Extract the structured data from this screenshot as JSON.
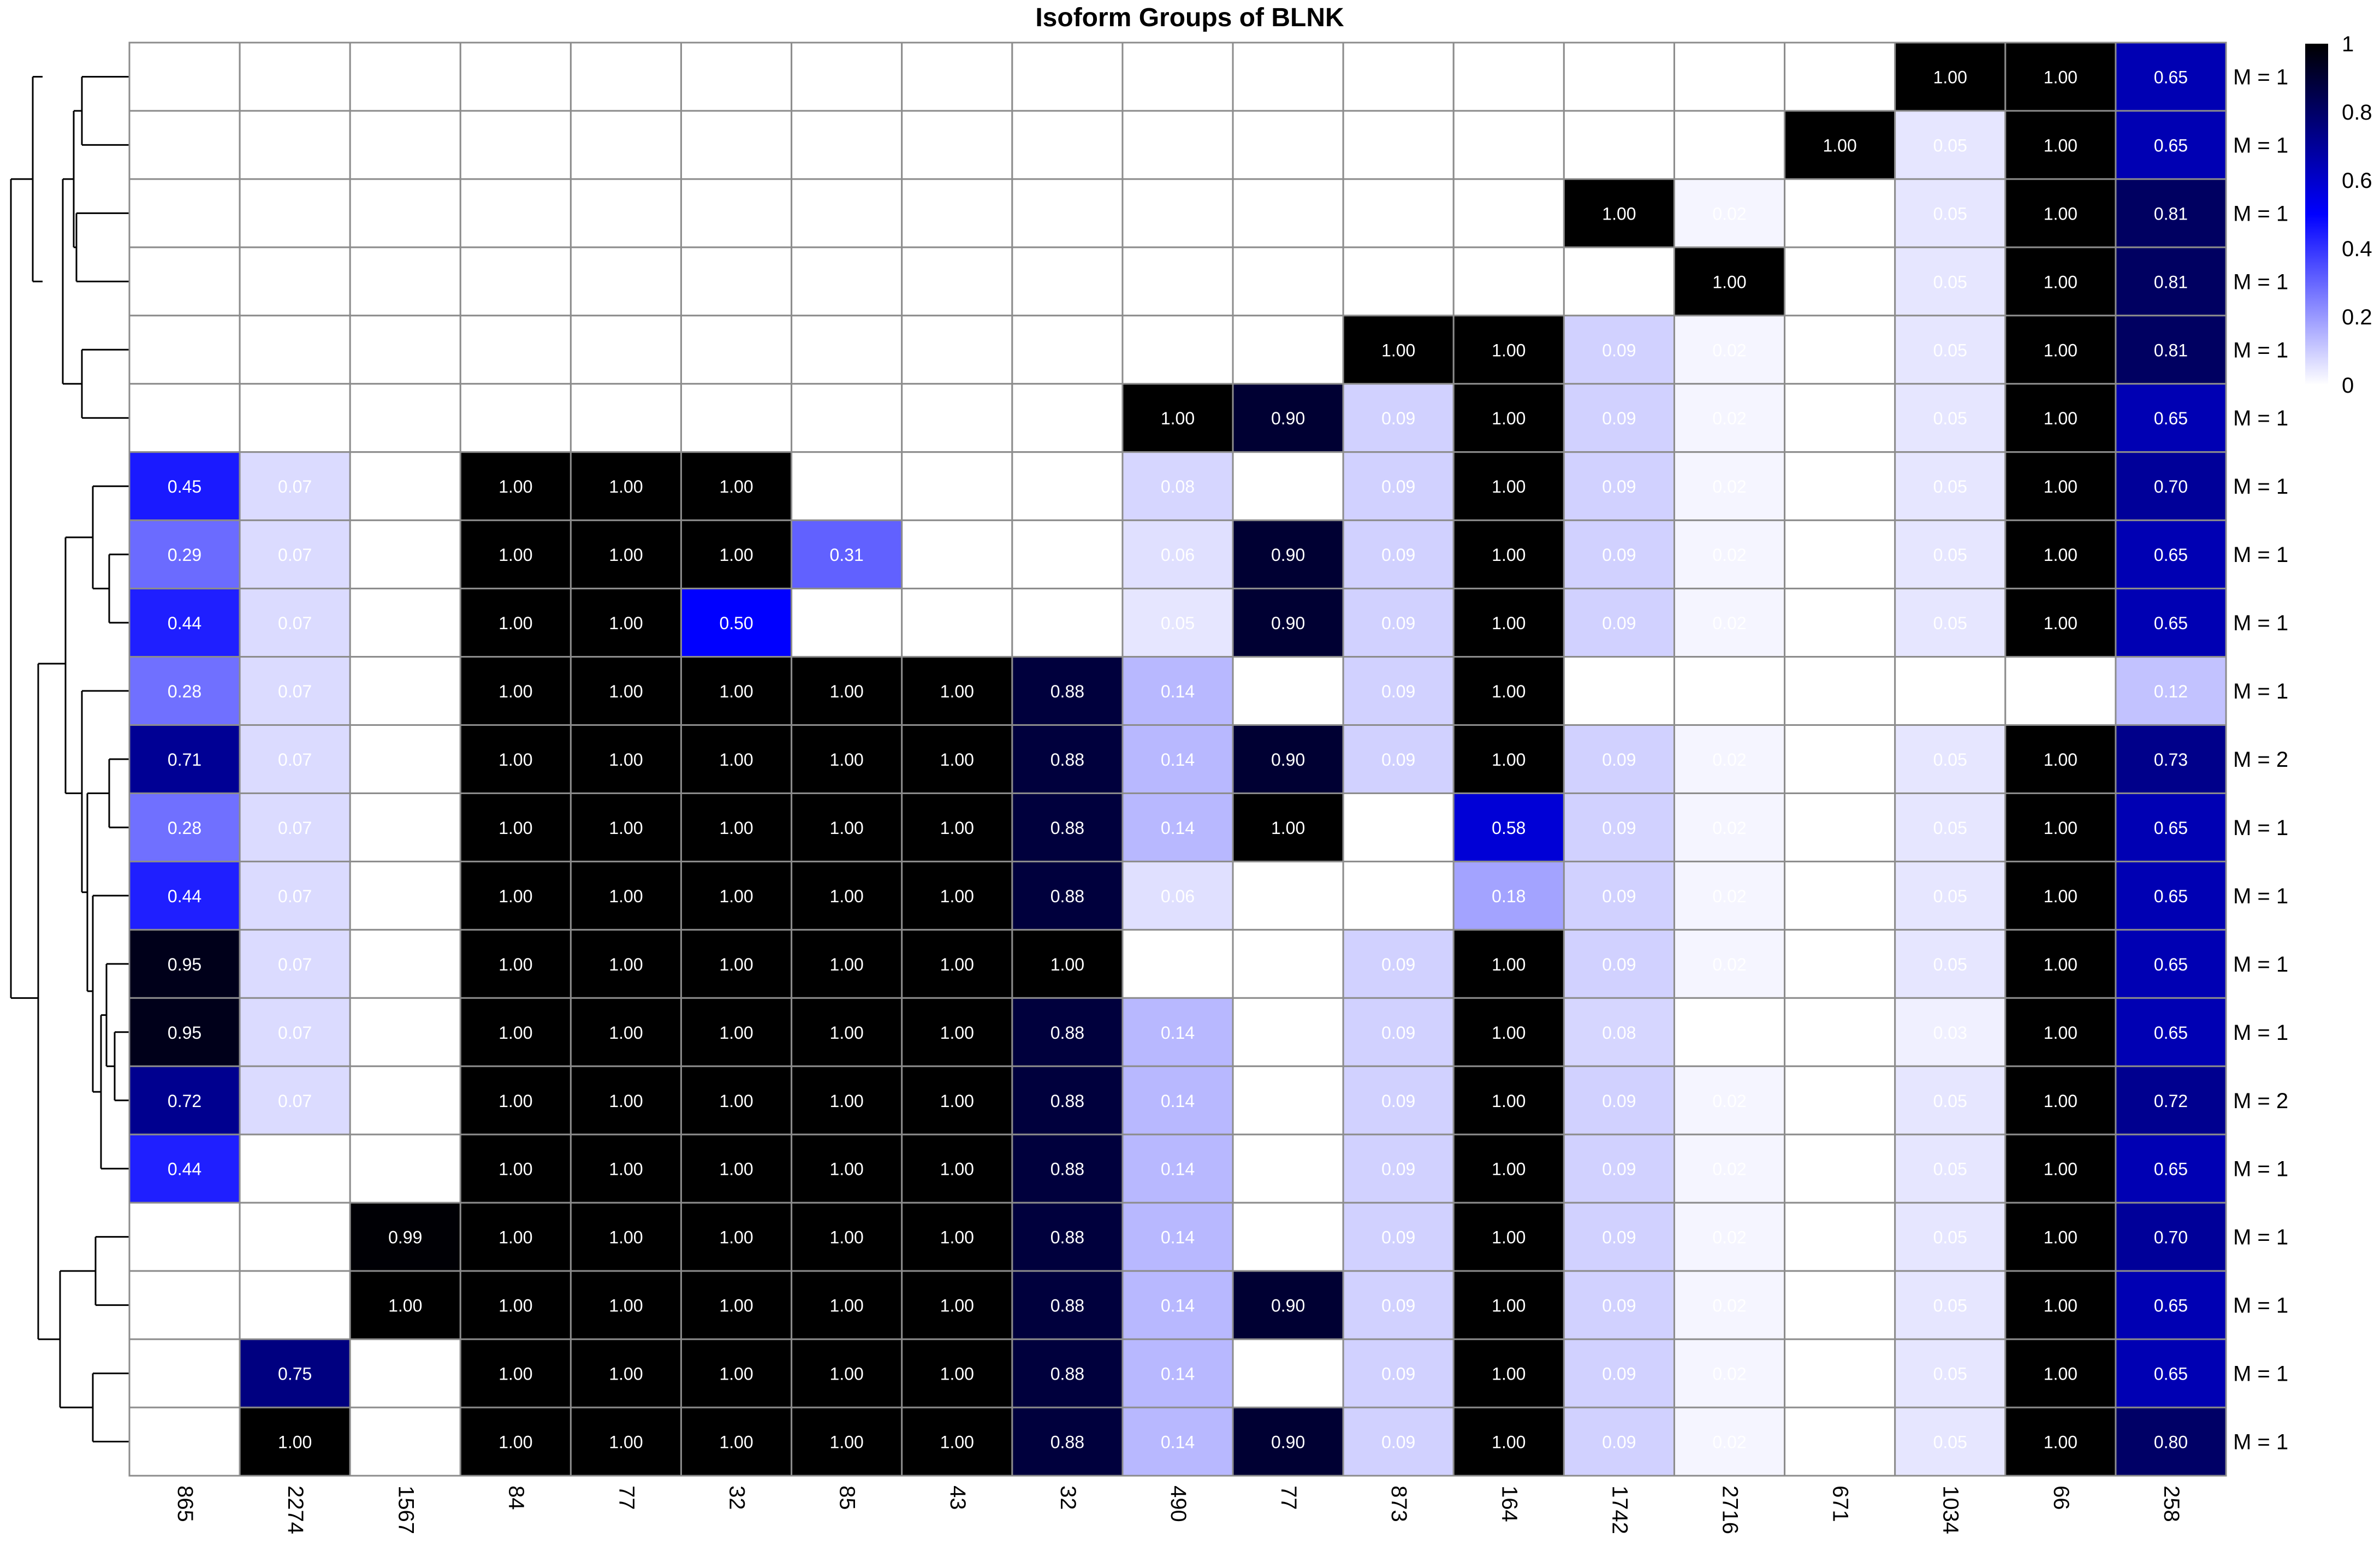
{
  "chart_data": {
    "type": "heatmap",
    "title": "Isoform Groups of BLNK",
    "columns": [
      "865",
      "2274",
      "1567",
      "84",
      "77",
      "32",
      "85",
      "43",
      "32",
      "490",
      "77",
      "873",
      "164",
      "1742",
      "2716",
      "671",
      "1034",
      "66",
      "258"
    ],
    "row_labels": [
      "M = 1",
      "M = 1",
      "M = 1",
      "M = 1",
      "M = 1",
      "M = 1",
      "M = 1",
      "M = 1",
      "M = 1",
      "M = 1",
      "M = 2",
      "M = 1",
      "M = 1",
      "M = 1",
      "M = 1",
      "M = 2",
      "M = 1",
      "M = 1",
      "M = 1",
      "M = 1",
      "M = 1"
    ],
    "values": [
      [
        null,
        null,
        null,
        null,
        null,
        null,
        null,
        null,
        null,
        null,
        null,
        null,
        null,
        null,
        null,
        null,
        1.0,
        1.0,
        0.65
      ],
      [
        null,
        null,
        null,
        null,
        null,
        null,
        null,
        null,
        null,
        null,
        null,
        null,
        null,
        null,
        null,
        1.0,
        0.05,
        1.0,
        0.65
      ],
      [
        null,
        null,
        null,
        null,
        null,
        null,
        null,
        null,
        null,
        null,
        null,
        null,
        null,
        1.0,
        0.02,
        null,
        0.05,
        1.0,
        0.81
      ],
      [
        null,
        null,
        null,
        null,
        null,
        null,
        null,
        null,
        null,
        null,
        null,
        null,
        null,
        null,
        1.0,
        null,
        0.05,
        1.0,
        0.81
      ],
      [
        null,
        null,
        null,
        null,
        null,
        null,
        null,
        null,
        null,
        null,
        null,
        1.0,
        1.0,
        0.09,
        0.02,
        null,
        0.05,
        1.0,
        0.81
      ],
      [
        null,
        null,
        null,
        null,
        null,
        null,
        null,
        null,
        null,
        1.0,
        0.9,
        0.09,
        1.0,
        0.09,
        0.02,
        null,
        0.05,
        1.0,
        0.65
      ],
      [
        0.45,
        0.07,
        null,
        1.0,
        1.0,
        1.0,
        null,
        null,
        null,
        0.08,
        null,
        0.09,
        1.0,
        0.09,
        0.02,
        null,
        0.05,
        1.0,
        0.7
      ],
      [
        0.29,
        0.07,
        null,
        1.0,
        1.0,
        1.0,
        0.31,
        null,
        null,
        0.06,
        0.9,
        0.09,
        1.0,
        0.09,
        0.02,
        null,
        0.05,
        1.0,
        0.65
      ],
      [
        0.44,
        0.07,
        null,
        1.0,
        1.0,
        0.5,
        null,
        null,
        null,
        0.05,
        0.9,
        0.09,
        1.0,
        0.09,
        0.02,
        null,
        0.05,
        1.0,
        0.65
      ],
      [
        0.28,
        0.07,
        null,
        1.0,
        1.0,
        1.0,
        1.0,
        1.0,
        0.88,
        0.14,
        null,
        0.09,
        1.0,
        null,
        null,
        null,
        null,
        null,
        0.12
      ],
      [
        0.71,
        0.07,
        null,
        1.0,
        1.0,
        1.0,
        1.0,
        1.0,
        0.88,
        0.14,
        0.9,
        0.09,
        1.0,
        0.09,
        0.02,
        null,
        0.05,
        1.0,
        0.73
      ],
      [
        0.28,
        0.07,
        null,
        1.0,
        1.0,
        1.0,
        1.0,
        1.0,
        0.88,
        0.14,
        1.0,
        null,
        0.58,
        0.09,
        0.02,
        null,
        0.05,
        1.0,
        0.65
      ],
      [
        0.44,
        0.07,
        null,
        1.0,
        1.0,
        1.0,
        1.0,
        1.0,
        0.88,
        0.06,
        null,
        null,
        0.18,
        0.09,
        0.02,
        null,
        0.05,
        1.0,
        0.65
      ],
      [
        0.95,
        0.07,
        null,
        1.0,
        1.0,
        1.0,
        1.0,
        1.0,
        1.0,
        null,
        null,
        0.09,
        1.0,
        0.09,
        0.02,
        null,
        0.05,
        1.0,
        0.65
      ],
      [
        0.95,
        0.07,
        null,
        1.0,
        1.0,
        1.0,
        1.0,
        1.0,
        0.88,
        0.14,
        null,
        0.09,
        1.0,
        0.08,
        null,
        null,
        0.03,
        1.0,
        0.65
      ],
      [
        0.72,
        0.07,
        null,
        1.0,
        1.0,
        1.0,
        1.0,
        1.0,
        0.88,
        0.14,
        null,
        0.09,
        1.0,
        0.09,
        0.02,
        null,
        0.05,
        1.0,
        0.72
      ],
      [
        0.44,
        null,
        null,
        1.0,
        1.0,
        1.0,
        1.0,
        1.0,
        0.88,
        0.14,
        null,
        0.09,
        1.0,
        0.09,
        0.02,
        null,
        0.05,
        1.0,
        0.65
      ],
      [
        null,
        null,
        0.99,
        1.0,
        1.0,
        1.0,
        1.0,
        1.0,
        0.88,
        0.14,
        null,
        0.09,
        1.0,
        0.09,
        0.02,
        null,
        0.05,
        1.0,
        0.7
      ],
      [
        null,
        null,
        1.0,
        1.0,
        1.0,
        1.0,
        1.0,
        1.0,
        0.88,
        0.14,
        0.9,
        0.09,
        1.0,
        0.09,
        0.02,
        null,
        0.05,
        1.0,
        0.65
      ],
      [
        null,
        0.75,
        null,
        1.0,
        1.0,
        1.0,
        1.0,
        1.0,
        0.88,
        0.14,
        null,
        0.09,
        1.0,
        0.09,
        0.02,
        null,
        0.05,
        1.0,
        0.65
      ],
      [
        null,
        1.0,
        null,
        1.0,
        1.0,
        1.0,
        1.0,
        1.0,
        0.88,
        0.14,
        0.9,
        0.09,
        1.0,
        0.09,
        0.02,
        null,
        0.05,
        1.0,
        0.8
      ]
    ],
    "colorbar": {
      "range": [
        0,
        1
      ],
      "ticks": [
        "0",
        "0.2",
        "0.4",
        "0.6",
        "0.8",
        "1"
      ],
      "colors": [
        "#ffffff",
        "#0000ff",
        "#000000"
      ]
    },
    "dendrogram": "left, rows clustered"
  }
}
